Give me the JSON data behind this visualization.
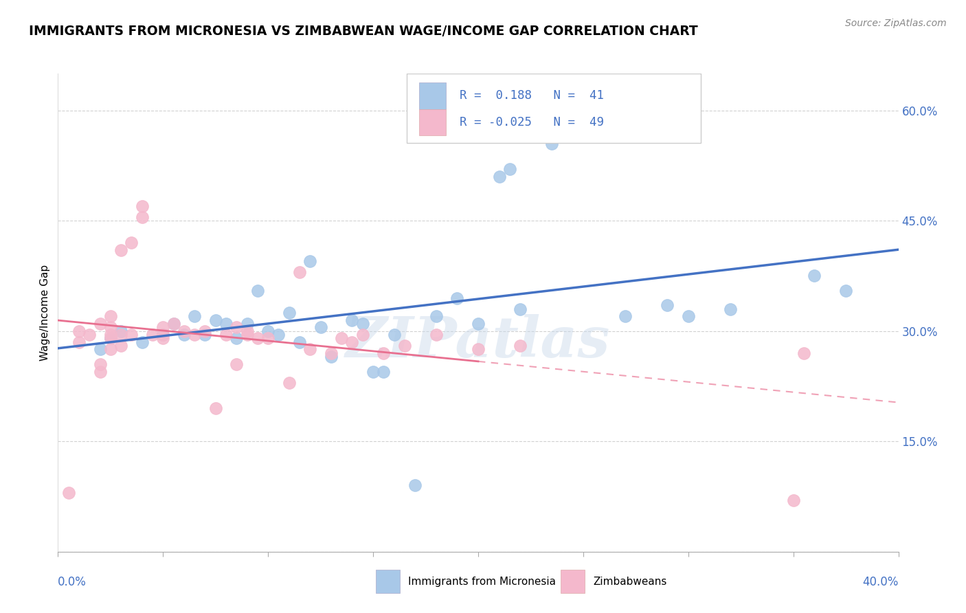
{
  "title": "IMMIGRANTS FROM MICRONESIA VS ZIMBABWEAN WAGE/INCOME GAP CORRELATION CHART",
  "source": "Source: ZipAtlas.com",
  "ylabel": "Wage/Income Gap",
  "y_ticks": [
    0.0,
    0.15,
    0.3,
    0.45,
    0.6
  ],
  "y_tick_labels": [
    "",
    "15.0%",
    "30.0%",
    "45.0%",
    "60.0%"
  ],
  "x_range": [
    0.0,
    0.4
  ],
  "y_range": [
    0.0,
    0.65
  ],
  "legend_R_blue": "0.188",
  "legend_N_blue": "41",
  "legend_R_pink": "-0.025",
  "legend_N_pink": "49",
  "legend_label_blue": "Immigrants from Micronesia",
  "legend_label_pink": "Zimbabweans",
  "blue_color": "#a8c8e8",
  "pink_color": "#f4b8cc",
  "blue_line_color": "#4472c4",
  "pink_line_color": "#e87090",
  "watermark": "ZIPatlas",
  "blue_x": [
    0.02,
    0.025,
    0.03,
    0.04,
    0.05,
    0.055,
    0.06,
    0.065,
    0.07,
    0.075,
    0.08,
    0.085,
    0.09,
    0.095,
    0.1,
    0.105,
    0.11,
    0.115,
    0.12,
    0.125,
    0.13,
    0.14,
    0.145,
    0.15,
    0.155,
    0.16,
    0.17,
    0.18,
    0.19,
    0.2,
    0.21,
    0.215,
    0.22,
    0.235,
    0.25,
    0.27,
    0.29,
    0.3,
    0.32,
    0.36,
    0.375
  ],
  "blue_y": [
    0.275,
    0.29,
    0.3,
    0.285,
    0.295,
    0.31,
    0.295,
    0.32,
    0.295,
    0.315,
    0.31,
    0.29,
    0.31,
    0.355,
    0.3,
    0.295,
    0.325,
    0.285,
    0.395,
    0.305,
    0.265,
    0.315,
    0.31,
    0.245,
    0.245,
    0.295,
    0.09,
    0.32,
    0.345,
    0.31,
    0.51,
    0.52,
    0.33,
    0.555,
    0.57,
    0.32,
    0.335,
    0.32,
    0.33,
    0.375,
    0.355
  ],
  "pink_x": [
    0.005,
    0.01,
    0.01,
    0.015,
    0.02,
    0.02,
    0.02,
    0.025,
    0.025,
    0.025,
    0.025,
    0.025,
    0.03,
    0.03,
    0.03,
    0.035,
    0.035,
    0.04,
    0.04,
    0.045,
    0.05,
    0.05,
    0.05,
    0.055,
    0.06,
    0.065,
    0.07,
    0.075,
    0.08,
    0.085,
    0.085,
    0.09,
    0.09,
    0.095,
    0.1,
    0.11,
    0.115,
    0.12,
    0.13,
    0.135,
    0.14,
    0.145,
    0.155,
    0.165,
    0.18,
    0.2,
    0.22,
    0.35,
    0.355
  ],
  "pink_y": [
    0.08,
    0.285,
    0.3,
    0.295,
    0.245,
    0.255,
    0.31,
    0.275,
    0.29,
    0.295,
    0.305,
    0.32,
    0.28,
    0.295,
    0.41,
    0.295,
    0.42,
    0.455,
    0.47,
    0.295,
    0.29,
    0.295,
    0.305,
    0.31,
    0.3,
    0.295,
    0.3,
    0.195,
    0.295,
    0.305,
    0.255,
    0.295,
    0.3,
    0.29,
    0.29,
    0.23,
    0.38,
    0.275,
    0.27,
    0.29,
    0.285,
    0.295,
    0.27,
    0.28,
    0.295,
    0.275,
    0.28,
    0.07,
    0.27
  ]
}
